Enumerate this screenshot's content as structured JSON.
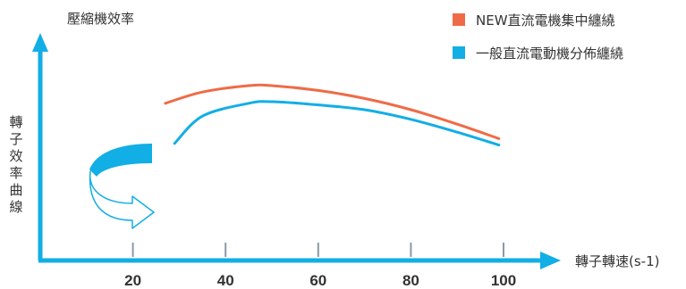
{
  "chart_data": {
    "type": "line",
    "title": "",
    "ylabel": "轉子效率曲線",
    "top_label": "壓縮機效率",
    "xlabel": "轉子轉速(s-1)",
    "x_ticks": [
      20,
      40,
      60,
      80,
      100
    ],
    "xlim": [
      0,
      112
    ],
    "ylim": [
      0,
      100
    ],
    "legend_position": "top-right",
    "series": [
      {
        "name": "NEW直流電機集中纏繞",
        "color": "#ef6b47",
        "x": [
          27,
          35,
          45,
          50,
          60,
          70,
          80,
          90,
          99
        ],
        "y": [
          79,
          86,
          90,
          90,
          87,
          82,
          75,
          66,
          57
        ]
      },
      {
        "name": "一般直流電動機分佈纏繞",
        "color": "#12aee6",
        "x": [
          29,
          35,
          45,
          50,
          60,
          70,
          80,
          90,
          99
        ],
        "y": [
          54,
          71,
          79,
          80,
          78,
          75,
          69,
          61,
          53
        ]
      }
    ],
    "axis_color": "#12aee6",
    "tick_color": "#8a9aa8"
  }
}
